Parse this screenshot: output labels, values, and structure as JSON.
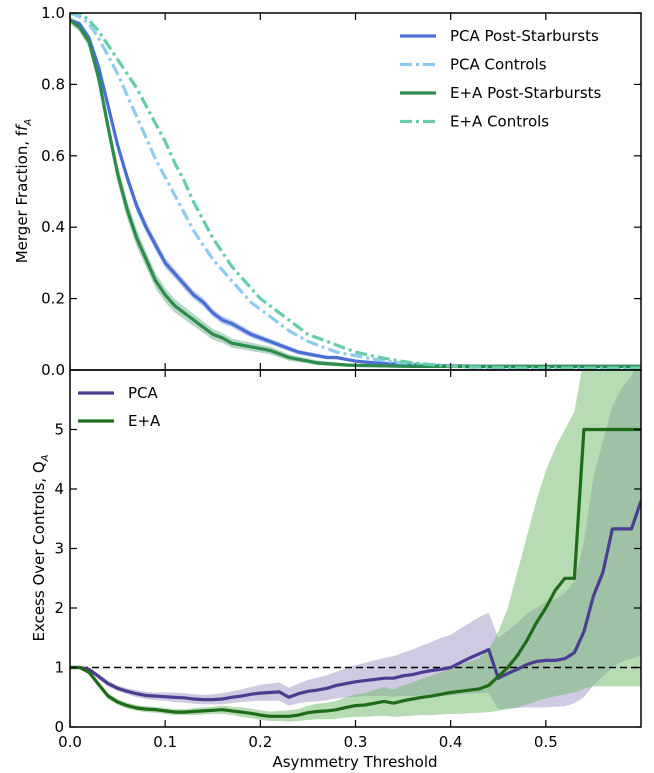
{
  "chart_data": [
    {
      "type": "line",
      "panel": "top",
      "title": "",
      "xlabel": "",
      "ylabel": "Merger Fraction, f",
      "ylabel_sub": "A",
      "xlim": [
        0.0,
        0.6
      ],
      "ylim": [
        0.0,
        1.0
      ],
      "yticks": [
        0.0,
        0.2,
        0.4,
        0.6,
        0.8,
        1.0
      ],
      "ytick_labels": [
        "0.0",
        "0.2",
        "0.4",
        "0.6",
        "0.8",
        "1.0"
      ],
      "xticks": [
        0.0,
        0.1,
        0.2,
        0.3,
        0.4,
        0.5
      ],
      "grid": false,
      "legend_position": "top-right",
      "x": [
        0.0,
        0.01,
        0.02,
        0.03,
        0.04,
        0.05,
        0.06,
        0.07,
        0.08,
        0.09,
        0.1,
        0.11,
        0.12,
        0.13,
        0.14,
        0.15,
        0.16,
        0.17,
        0.18,
        0.19,
        0.2,
        0.21,
        0.22,
        0.23,
        0.24,
        0.25,
        0.26,
        0.27,
        0.28,
        0.29,
        0.3,
        0.32,
        0.34,
        0.36,
        0.38,
        0.4,
        0.42,
        0.44,
        0.46,
        0.48,
        0.5,
        0.52,
        0.54,
        0.56,
        0.58,
        0.6
      ],
      "series": [
        {
          "name": "PCA Post-Starbursts",
          "color": "#4a6fd4",
          "style": "solid",
          "values": [
            0.98,
            0.97,
            0.93,
            0.85,
            0.74,
            0.63,
            0.54,
            0.46,
            0.4,
            0.35,
            0.3,
            0.27,
            0.24,
            0.21,
            0.19,
            0.16,
            0.14,
            0.13,
            0.115,
            0.1,
            0.09,
            0.08,
            0.07,
            0.06,
            0.05,
            0.045,
            0.04,
            0.035,
            0.035,
            0.03,
            0.025,
            0.02,
            0.017,
            0.015,
            0.013,
            0.012,
            0.011,
            0.01,
            0.01,
            0.01,
            0.01,
            0.01,
            0.01,
            0.01,
            0.01,
            0.01
          ],
          "band_halfwidth": [
            0.005,
            0.006,
            0.01,
            0.012,
            0.015,
            0.016,
            0.016,
            0.016,
            0.015,
            0.015,
            0.014,
            0.013,
            0.013,
            0.012,
            0.012,
            0.011,
            0.011,
            0.01,
            0.01,
            0.009,
            0.009,
            0.008,
            0.008,
            0.007,
            0.007,
            0.006,
            0.006,
            0.005,
            0.005,
            0.005,
            0.004,
            0.004,
            0.003,
            0.003,
            0.003,
            0.003,
            0.003,
            0.003,
            0.003,
            0.003,
            0.003,
            0.003,
            0.003,
            0.003,
            0.003,
            0.003
          ]
        },
        {
          "name": "PCA Controls",
          "color": "#8ecbee",
          "style": "dashdot",
          "values": [
            1.0,
            0.99,
            0.97,
            0.93,
            0.88,
            0.83,
            0.77,
            0.71,
            0.65,
            0.59,
            0.54,
            0.49,
            0.44,
            0.39,
            0.35,
            0.31,
            0.28,
            0.25,
            0.22,
            0.19,
            0.17,
            0.15,
            0.13,
            0.11,
            0.095,
            0.08,
            0.07,
            0.06,
            0.05,
            0.045,
            0.04,
            0.03,
            0.022,
            0.017,
            0.013,
            0.01,
            0.008,
            0.007,
            0.006,
            0.005,
            0.005,
            0.005,
            0.005,
            0.005,
            0.005,
            0.005
          ]
        },
        {
          "name": "E+A Post-Starbursts",
          "color": "#2e8b4e",
          "style": "solid",
          "values": [
            0.98,
            0.96,
            0.92,
            0.82,
            0.68,
            0.55,
            0.45,
            0.37,
            0.31,
            0.25,
            0.21,
            0.18,
            0.16,
            0.14,
            0.12,
            0.1,
            0.09,
            0.075,
            0.07,
            0.065,
            0.06,
            0.055,
            0.045,
            0.035,
            0.03,
            0.025,
            0.02,
            0.018,
            0.016,
            0.014,
            0.013,
            0.012,
            0.011,
            0.01,
            0.01,
            0.01,
            0.01,
            0.01,
            0.01,
            0.01,
            0.01,
            0.01,
            0.01,
            0.01,
            0.01,
            0.01
          ],
          "band_halfwidth": [
            0.01,
            0.012,
            0.018,
            0.022,
            0.025,
            0.026,
            0.025,
            0.024,
            0.022,
            0.021,
            0.02,
            0.019,
            0.018,
            0.017,
            0.016,
            0.015,
            0.014,
            0.013,
            0.012,
            0.012,
            0.011,
            0.011,
            0.01,
            0.009,
            0.008,
            0.007,
            0.007,
            0.006,
            0.006,
            0.005,
            0.005,
            0.005,
            0.004,
            0.004,
            0.004,
            0.004,
            0.004,
            0.004,
            0.004,
            0.004,
            0.004,
            0.004,
            0.004,
            0.004,
            0.004,
            0.004
          ]
        },
        {
          "name": "E+A Controls",
          "color": "#66ccaa",
          "style": "dashdot",
          "values": [
            1.0,
            1.0,
            0.98,
            0.95,
            0.91,
            0.87,
            0.83,
            0.79,
            0.74,
            0.69,
            0.64,
            0.58,
            0.53,
            0.47,
            0.42,
            0.37,
            0.33,
            0.29,
            0.26,
            0.23,
            0.2,
            0.18,
            0.16,
            0.14,
            0.12,
            0.1,
            0.09,
            0.08,
            0.07,
            0.06,
            0.05,
            0.038,
            0.028,
            0.02,
            0.015,
            0.011,
            0.009,
            0.008,
            0.007,
            0.006,
            0.006,
            0.006,
            0.006,
            0.006,
            0.006,
            0.006
          ]
        }
      ]
    },
    {
      "type": "line",
      "panel": "bottom",
      "title": "",
      "xlabel": "Asymmetry Threshold",
      "ylabel": "Excess Over Controls, Q",
      "ylabel_sub": "A",
      "xlim": [
        0.0,
        0.6
      ],
      "ylim": [
        0.0,
        6.0
      ],
      "xticks": [
        0.0,
        0.1,
        0.2,
        0.3,
        0.4,
        0.5
      ],
      "xtick_labels": [
        "0.0",
        "0.1",
        "0.2",
        "0.3",
        "0.4",
        "0.5"
      ],
      "yticks": [
        0,
        1,
        2,
        3,
        4,
        5
      ],
      "ytick_labels": [
        "0",
        "1",
        "2",
        "3",
        "4",
        "5"
      ],
      "reference_line": 1.0,
      "grid": false,
      "legend_position": "top-left",
      "x": [
        0.0,
        0.01,
        0.02,
        0.03,
        0.04,
        0.05,
        0.06,
        0.07,
        0.08,
        0.09,
        0.1,
        0.11,
        0.12,
        0.13,
        0.14,
        0.15,
        0.16,
        0.17,
        0.18,
        0.19,
        0.2,
        0.21,
        0.22,
        0.23,
        0.24,
        0.25,
        0.26,
        0.27,
        0.28,
        0.29,
        0.3,
        0.31,
        0.32,
        0.33,
        0.34,
        0.35,
        0.36,
        0.37,
        0.38,
        0.39,
        0.4,
        0.41,
        0.42,
        0.43,
        0.44,
        0.45,
        0.46,
        0.47,
        0.48,
        0.49,
        0.5,
        0.51,
        0.52,
        0.53,
        0.54,
        0.55,
        0.56,
        0.57,
        0.58,
        0.59,
        0.6
      ],
      "series": [
        {
          "name": "PCA",
          "color": "#4b3d8f",
          "band_color": "#9d96c6",
          "values": [
            1.0,
            1.0,
            0.97,
            0.85,
            0.73,
            0.65,
            0.6,
            0.56,
            0.53,
            0.52,
            0.51,
            0.5,
            0.49,
            0.47,
            0.46,
            0.46,
            0.47,
            0.5,
            0.52,
            0.55,
            0.57,
            0.58,
            0.59,
            0.5,
            0.56,
            0.6,
            0.62,
            0.65,
            0.7,
            0.73,
            0.76,
            0.78,
            0.8,
            0.82,
            0.82,
            0.86,
            0.88,
            0.92,
            0.95,
            0.97,
            1.0,
            1.08,
            1.16,
            1.23,
            1.3,
            0.82,
            0.9,
            0.97,
            1.05,
            1.1,
            1.12,
            1.12,
            1.15,
            1.25,
            1.6,
            2.2,
            2.6,
            3.33,
            3.33,
            3.33,
            3.8
          ],
          "lower": [
            1.0,
            1.0,
            0.94,
            0.8,
            0.68,
            0.6,
            0.55,
            0.5,
            0.47,
            0.45,
            0.44,
            0.42,
            0.41,
            0.39,
            0.38,
            0.38,
            0.38,
            0.4,
            0.42,
            0.43,
            0.44,
            0.44,
            0.44,
            0.36,
            0.4,
            0.42,
            0.43,
            0.45,
            0.48,
            0.5,
            0.51,
            0.52,
            0.52,
            0.52,
            0.51,
            0.52,
            0.52,
            0.53,
            0.54,
            0.53,
            0.53,
            0.55,
            0.56,
            0.57,
            0.57,
            0.3,
            0.31,
            0.32,
            0.33,
            0.33,
            0.33,
            0.34,
            0.35,
            0.4,
            0.5,
            0.7,
            0.85,
            1.0,
            1.1,
            1.15,
            1.2
          ],
          "upper": [
            1.0,
            1.0,
            1.0,
            0.9,
            0.78,
            0.7,
            0.65,
            0.62,
            0.59,
            0.58,
            0.58,
            0.58,
            0.57,
            0.55,
            0.54,
            0.55,
            0.57,
            0.6,
            0.63,
            0.67,
            0.71,
            0.73,
            0.75,
            0.66,
            0.73,
            0.79,
            0.83,
            0.87,
            0.93,
            0.99,
            1.04,
            1.08,
            1.12,
            1.16,
            1.19,
            1.25,
            1.3,
            1.37,
            1.43,
            1.5,
            1.55,
            1.65,
            1.75,
            1.85,
            1.92,
            1.5,
            1.62,
            1.75,
            1.9,
            2.0,
            2.1,
            2.15,
            2.25,
            2.45,
            3.1,
            4.2,
            4.8,
            5.4,
            5.7,
            5.9,
            6.2
          ]
        },
        {
          "name": "E+A",
          "color": "#1f6b1a",
          "band_color": "#6fb96a",
          "values": [
            1.0,
            1.0,
            0.92,
            0.72,
            0.52,
            0.42,
            0.36,
            0.32,
            0.3,
            0.29,
            0.27,
            0.25,
            0.25,
            0.26,
            0.27,
            0.28,
            0.29,
            0.27,
            0.25,
            0.23,
            0.2,
            0.18,
            0.18,
            0.18,
            0.2,
            0.24,
            0.26,
            0.27,
            0.29,
            0.33,
            0.36,
            0.37,
            0.4,
            0.43,
            0.4,
            0.44,
            0.47,
            0.5,
            0.52,
            0.55,
            0.58,
            0.6,
            0.62,
            0.64,
            0.7,
            0.85,
            1.0,
            1.2,
            1.45,
            1.75,
            2.0,
            2.3,
            2.5,
            2.5,
            5.0,
            5.0,
            5.0,
            5.0,
            5.0,
            5.0,
            5.0
          ],
          "lower": [
            1.0,
            1.0,
            0.88,
            0.67,
            0.47,
            0.37,
            0.31,
            0.27,
            0.25,
            0.24,
            0.22,
            0.2,
            0.2,
            0.2,
            0.21,
            0.22,
            0.22,
            0.2,
            0.17,
            0.15,
            0.12,
            0.1,
            0.1,
            0.09,
            0.1,
            0.12,
            0.13,
            0.13,
            0.14,
            0.16,
            0.17,
            0.17,
            0.18,
            0.19,
            0.17,
            0.18,
            0.19,
            0.2,
            0.2,
            0.21,
            0.22,
            0.22,
            0.23,
            0.24,
            0.25,
            0.27,
            0.3,
            0.33,
            0.38,
            0.43,
            0.48,
            0.52,
            0.55,
            0.58,
            0.64,
            0.68,
            0.68,
            0.68,
            0.68,
            0.68,
            0.68
          ],
          "upper": [
            1.0,
            1.0,
            0.96,
            0.77,
            0.57,
            0.47,
            0.41,
            0.37,
            0.35,
            0.34,
            0.32,
            0.3,
            0.3,
            0.32,
            0.33,
            0.34,
            0.36,
            0.34,
            0.33,
            0.31,
            0.28,
            0.26,
            0.27,
            0.28,
            0.3,
            0.36,
            0.39,
            0.41,
            0.44,
            0.5,
            0.55,
            0.57,
            0.62,
            0.67,
            0.63,
            0.7,
            0.75,
            0.81,
            0.86,
            0.92,
            0.98,
            1.04,
            1.1,
            1.16,
            1.3,
            1.6,
            2.0,
            2.6,
            3.2,
            3.8,
            4.3,
            4.7,
            5.0,
            5.3,
            6.2,
            6.2,
            6.2,
            6.2,
            6.2,
            6.2,
            6.2
          ]
        }
      ]
    }
  ]
}
